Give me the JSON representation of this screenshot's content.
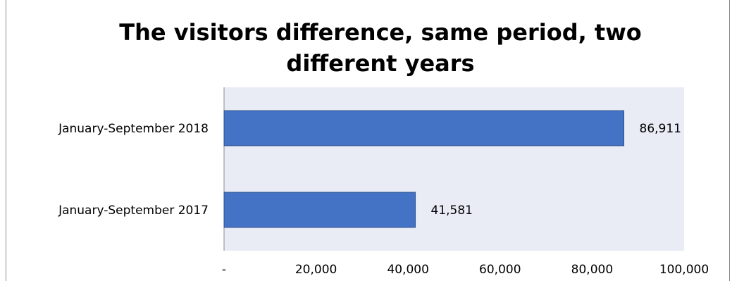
{
  "chart_data": {
    "type": "bar",
    "orientation": "horizontal",
    "title": "The visitors difference, same period, two different years",
    "categories": [
      "January-September 2018",
      "January-September 2017"
    ],
    "values": [
      86911,
      41581
    ],
    "data_labels": [
      "86,911",
      "41,581"
    ],
    "xlim": [
      0,
      100000
    ],
    "x_ticks": [
      0,
      20000,
      40000,
      60000,
      80000,
      100000
    ],
    "x_tick_labels": [
      "-",
      "20,000",
      "40,000",
      "60,000",
      "80,000",
      "100,000"
    ],
    "grid": false,
    "legend": "none",
    "colors": {
      "bar": "#4472c4",
      "bar_edge": "#2f528f",
      "plot_background": "#e9ebf5",
      "axis": "#8c8c8c"
    }
  }
}
